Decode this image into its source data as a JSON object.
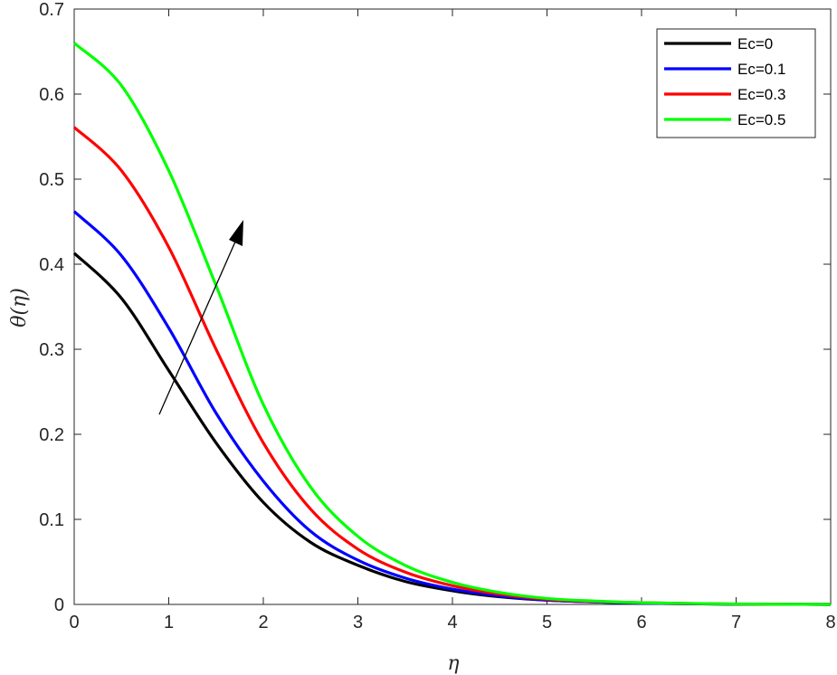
{
  "chart_data": {
    "type": "line",
    "title": "",
    "xlabel": "η",
    "ylabel": "θ(η)",
    "xlim": [
      0,
      8
    ],
    "ylim": [
      0,
      0.7
    ],
    "xticks": [
      "0",
      "1",
      "2",
      "3",
      "4",
      "5",
      "6",
      "7",
      "8"
    ],
    "yticks": [
      "0",
      "0.1",
      "0.2",
      "0.3",
      "0.4",
      "0.5",
      "0.6",
      "0.7"
    ],
    "grid": false,
    "legend_position": "top-right",
    "annotation": "arrow indicating increasing Ec",
    "x": [
      0,
      0.5,
      1,
      1.5,
      2,
      2.5,
      3,
      3.5,
      4,
      4.5,
      5,
      5.5,
      6,
      7,
      8
    ],
    "series": [
      {
        "name": "Ec=0",
        "color": "#000000",
        "values": [
          0.413,
          0.36,
          0.275,
          0.19,
          0.12,
          0.073,
          0.046,
          0.027,
          0.016,
          0.009,
          0.005,
          0.003,
          0.0015,
          0.0003,
          0.0
        ]
      },
      {
        "name": "Ec=0.1",
        "color": "#0000ff",
        "values": [
          0.462,
          0.41,
          0.325,
          0.225,
          0.145,
          0.086,
          0.052,
          0.031,
          0.018,
          0.01,
          0.005,
          0.003,
          0.0015,
          0.0003,
          0.0
        ]
      },
      {
        "name": "Ec=0.3",
        "color": "#ff0000",
        "values": [
          0.561,
          0.51,
          0.42,
          0.3,
          0.19,
          0.112,
          0.065,
          0.038,
          0.022,
          0.012,
          0.006,
          0.0035,
          0.002,
          0.0004,
          0.0
        ]
      },
      {
        "name": "Ec=0.5",
        "color": "#00ff00",
        "values": [
          0.66,
          0.61,
          0.51,
          0.375,
          0.235,
          0.138,
          0.08,
          0.046,
          0.026,
          0.014,
          0.007,
          0.004,
          0.002,
          0.0005,
          0.0
        ]
      }
    ]
  }
}
